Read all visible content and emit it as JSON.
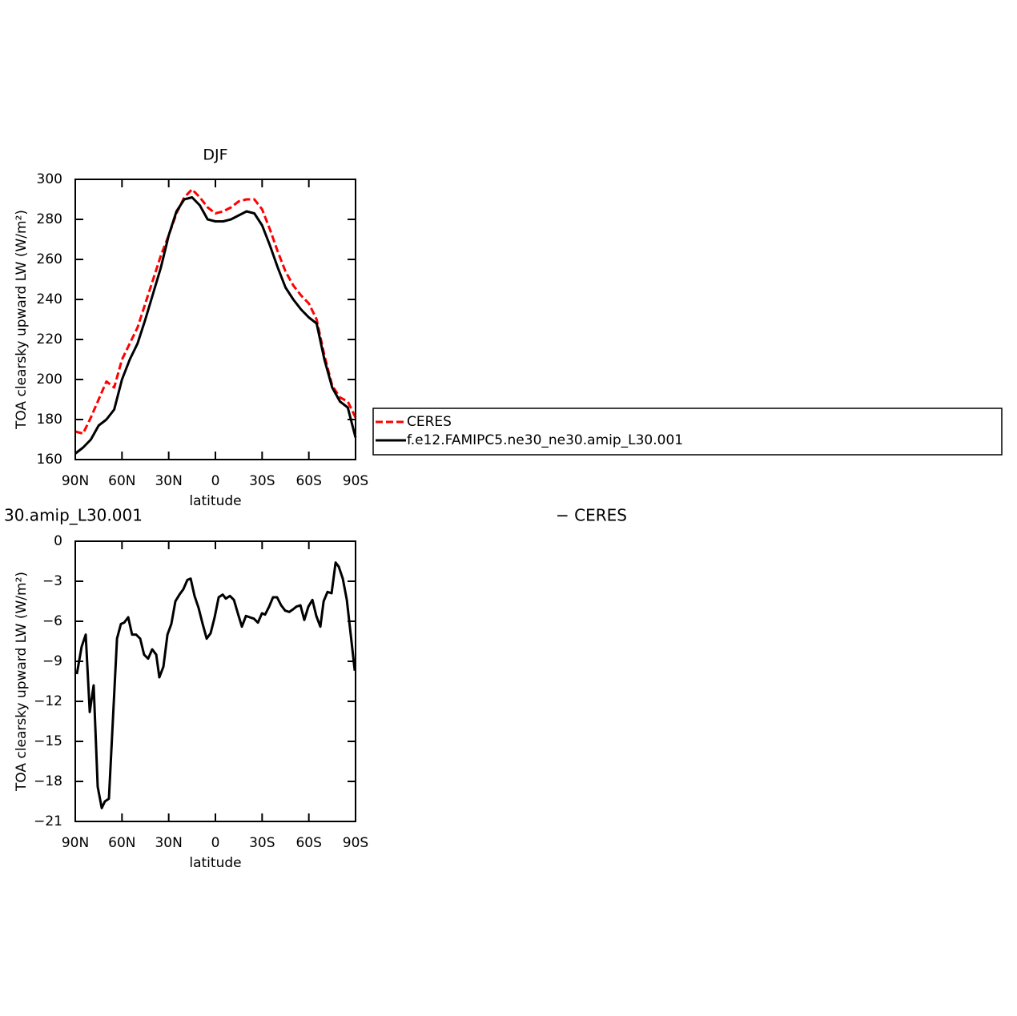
{
  "chart_data": [
    {
      "type": "line",
      "title": "DJF",
      "ylabel": "TOA clearsky upward LW (W/m²)",
      "xlabel": "latitude",
      "x": [
        90,
        85,
        80,
        75,
        70,
        65,
        60,
        55,
        50,
        45,
        40,
        35,
        30,
        25,
        20,
        15,
        10,
        5,
        0,
        -5,
        -10,
        -15,
        -20,
        -25,
        -30,
        -35,
        -40,
        -45,
        -50,
        -55,
        -60,
        -65,
        -70,
        -75,
        -80,
        -85,
        -90
      ],
      "series": [
        {
          "name": "CERES",
          "color": "#ff0000",
          "dashed": true,
          "values": [
            174,
            173,
            181,
            190,
            199,
            196,
            210,
            218,
            226,
            238,
            250,
            262,
            272,
            283,
            291,
            295,
            291,
            286,
            283,
            284,
            286,
            289,
            290,
            290,
            285,
            275,
            264,
            254,
            247,
            242,
            238,
            230,
            212,
            197,
            191,
            189,
            181
          ]
        },
        {
          "name": "f.e12.FAMIPC5.ne30_ne30.amip_L30.001",
          "color": "#000000",
          "dashed": false,
          "values": [
            163,
            166,
            170,
            177,
            180,
            185,
            200,
            210,
            218,
            230,
            243,
            256,
            272,
            284,
            290,
            291,
            287,
            280,
            279,
            279,
            280,
            282,
            284,
            283,
            277,
            267,
            256,
            246,
            240,
            235,
            231,
            228,
            210,
            196,
            189,
            186,
            171
          ]
        }
      ],
      "legend": "right",
      "xlim": [
        90,
        -90
      ],
      "xticks": [
        {
          "value": 90,
          "label": "90N"
        },
        {
          "value": 60,
          "label": "60N"
        },
        {
          "value": 30,
          "label": "30N"
        },
        0,
        {
          "value": -30,
          "label": "30S"
        },
        {
          "value": -60,
          "label": "60S"
        },
        {
          "value": -90,
          "label": "90S"
        }
      ],
      "ylim": [
        160,
        300
      ],
      "yticks": [
        160,
        180,
        200,
        220,
        240,
        260,
        280,
        300
      ]
    },
    {
      "type": "line",
      "title_left": "30.amip_L30.001",
      "title_right": "− CERES",
      "ylabel": "TOA clearsky upward LW (W/m²)",
      "xlabel": "latitude",
      "x": [
        89,
        85.9,
        83.3,
        80.7,
        78.2,
        75.6,
        73,
        71,
        68.4,
        63.2,
        60.7,
        58.6,
        56,
        53.5,
        50.9,
        48.3,
        45.8,
        43.2,
        40.6,
        38,
        36,
        33.4,
        30.8,
        28.3,
        25.7,
        23.1,
        20.6,
        18,
        15.9,
        13.4,
        10.8,
        8.2,
        5.6,
        3.1,
        0.5,
        -2.1,
        -4.7,
        -6.7,
        -9.3,
        -11.9,
        -14.4,
        -17,
        -19.6,
        -22.1,
        -24.7,
        -27.3,
        -29.9,
        -31.9,
        -34.5,
        -37,
        -39.6,
        -42.2,
        -44.8,
        -47.4,
        -49.9,
        -52,
        -54.6,
        -57.1,
        -59.7,
        -62.3,
        -64.8,
        -67.4,
        -69.5,
        -72,
        -74.6,
        -77.2,
        -79.2,
        -81.8,
        -84.4,
        -87,
        -89.5
      ],
      "series": [
        {
          "color": "#000000",
          "dashed": false,
          "values": [
            -9.96,
            -7.9,
            -7.0,
            -12.8,
            -10.8,
            -18.4,
            -20.0,
            -19.5,
            -19.3,
            -7.3,
            -6.2,
            -6.1,
            -5.7,
            -7.0,
            -7.0,
            -7.3,
            -8.5,
            -8.8,
            -8.1,
            -8.5,
            -10.2,
            -9.4,
            -7.0,
            -6.2,
            -4.5,
            -4.0,
            -3.6,
            -2.9,
            -2.8,
            -4.1,
            -5.0,
            -6.2,
            -7.3,
            -6.9,
            -5.7,
            -4.2,
            -4.0,
            -4.3,
            -4.1,
            -4.4,
            -5.4,
            -6.4,
            -5.6,
            -5.7,
            -5.8,
            -6.1,
            -5.4,
            -5.5,
            -4.9,
            -4.2,
            -4.2,
            -4.8,
            -5.2,
            -5.3,
            -5.1,
            -4.9,
            -4.8,
            -5.9,
            -4.9,
            -4.4,
            -5.6,
            -6.4,
            -4.5,
            -3.8,
            -3.9,
            -1.6,
            -1.9,
            -2.8,
            -4.4,
            -7.1,
            -9.7
          ]
        }
      ],
      "xlim": [
        90,
        -90
      ],
      "xticks": [
        {
          "value": 90,
          "label": "90N"
        },
        {
          "value": 60,
          "label": "60N"
        },
        {
          "value": 30,
          "label": "30N"
        },
        0,
        {
          "value": -30,
          "label": "30S"
        },
        {
          "value": -60,
          "label": "60S"
        },
        {
          "value": -90,
          "label": "90S"
        }
      ],
      "ylim": [
        -21,
        0
      ],
      "yticks": [
        {
          "value": -21,
          "label": "−21"
        },
        {
          "value": -18,
          "label": "−18"
        },
        {
          "value": -15,
          "label": "−15"
        },
        {
          "value": -12,
          "label": "−12"
        },
        {
          "value": -9,
          "label": "−9"
        },
        {
          "value": -6,
          "label": "−6"
        },
        {
          "value": -3,
          "label": "−3"
        },
        0
      ]
    }
  ]
}
